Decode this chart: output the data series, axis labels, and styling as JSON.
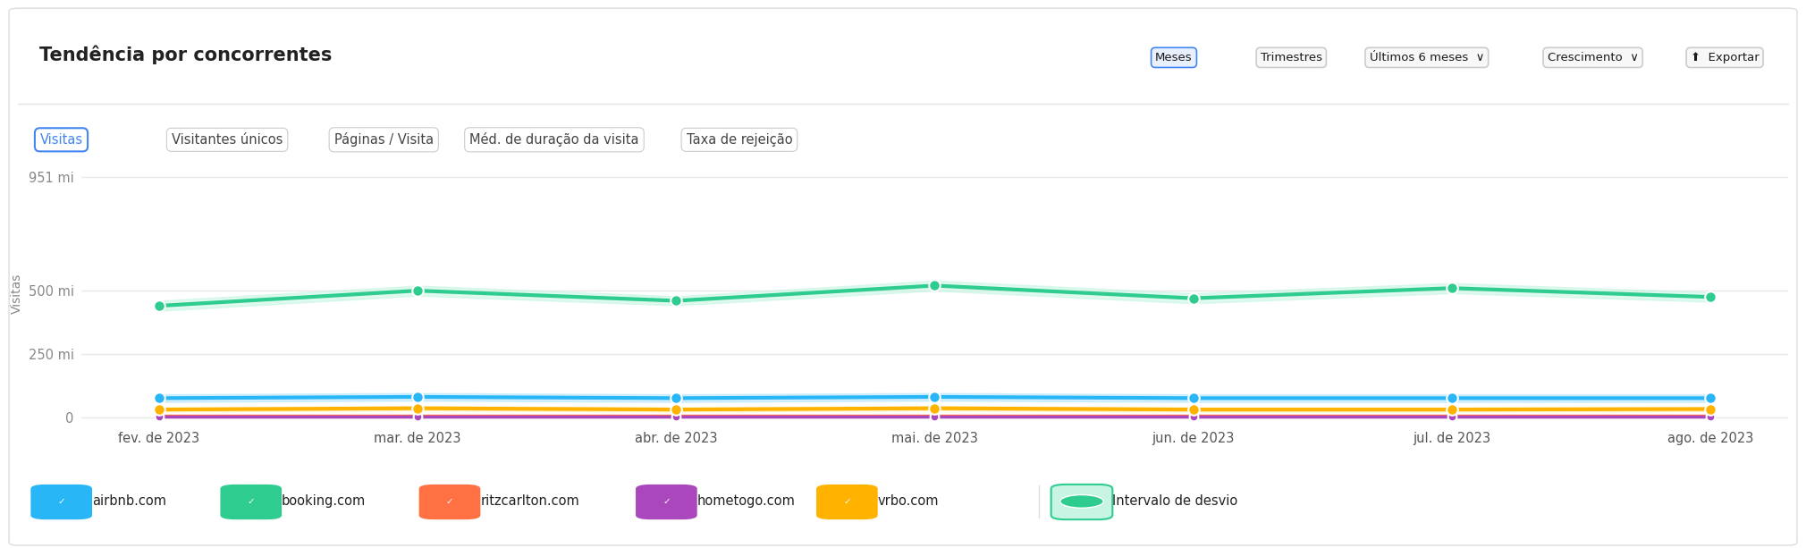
{
  "title": "Tendência por concorrentes",
  "ylabel": "Visitas",
  "tab_labels": [
    "Visitas",
    "Visitantes únicos",
    "Páginas / Visita",
    "Méd. de duração da visita",
    "Taxa de rejeição"
  ],
  "active_tab": "Visitas",
  "x_labels": [
    "fev. de 2023",
    "mar. de 2023",
    "abr. de 2023",
    "mai. de 2023",
    "jun. de 2023",
    "jul. de 2023",
    "ago. de 2023"
  ],
  "booking": [
    440,
    500,
    460,
    520,
    470,
    510,
    475
  ],
  "booking_upper": [
    460,
    520,
    478,
    540,
    490,
    530,
    494
  ],
  "booking_lower": [
    420,
    480,
    442,
    500,
    450,
    490,
    456
  ],
  "airbnb": [
    75,
    80,
    75,
    80,
    75,
    75,
    75
  ],
  "airbnb_upper": [
    90,
    95,
    90,
    95,
    90,
    90,
    90
  ],
  "airbnb_lower": [
    60,
    65,
    60,
    65,
    60,
    60,
    60
  ],
  "ritz": [
    5,
    5,
    5,
    5,
    5,
    5,
    5
  ],
  "hometogo": [
    2,
    2,
    2,
    2,
    2,
    2,
    2
  ],
  "vrbo": [
    30,
    35,
    30,
    35,
    30,
    30,
    32
  ],
  "vrbo_upper": [
    38,
    43,
    38,
    43,
    38,
    38,
    40
  ],
  "vrbo_lower": [
    22,
    27,
    22,
    27,
    22,
    22,
    24
  ],
  "booking_color": "#2ECC8F",
  "booking_band_color": "#C8F5E3",
  "airbnb_color": "#29B6F6",
  "airbnb_band_color": "#B3E5FC",
  "ritz_color": "#FF7043",
  "hometogo_color": "#AB47BC",
  "vrbo_color": "#FFB300",
  "vrbo_band_color": "#FFF0B3",
  "bg": "#FFFFFF",
  "grid_color": "#E8E8E8",
  "text_color": "#222222",
  "tick_color": "#888888",
  "ytick_vals": [
    0,
    250,
    500,
    951
  ],
  "ytick_labels": [
    "0",
    "250 mi",
    "500 mi",
    "951 mi"
  ],
  "legend_colors": [
    "#29B6F6",
    "#2ECC8F",
    "#FF7043",
    "#AB47BC",
    "#FFB300"
  ],
  "legend_labels": [
    "airbnb.com",
    "booking.com",
    "ritzcarlton.com",
    "hometogo.com",
    "vrbo.com"
  ],
  "intervalo_color": "#2ECC8F",
  "intervalo_band_color": "#C8F5E3"
}
